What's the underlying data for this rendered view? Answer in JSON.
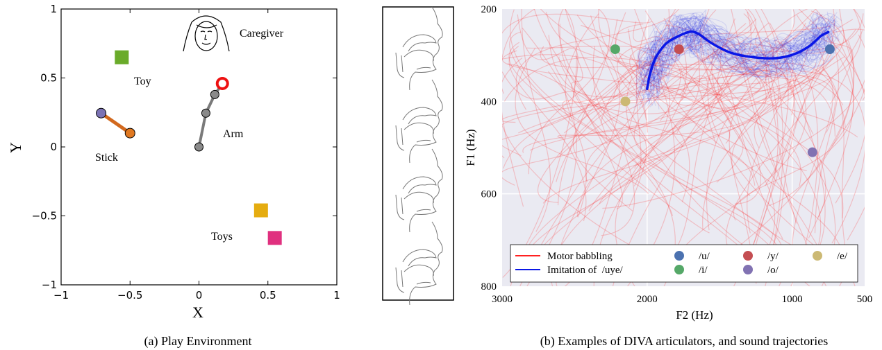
{
  "chart_data": [
    {
      "type": "scatter",
      "caption": "(a) Play Environment",
      "xlabel": "X",
      "ylabel": "Y",
      "xlim": [
        -1,
        1
      ],
      "ylim": [
        -1,
        1
      ],
      "xticks": [
        "−1",
        "−0.5",
        "0",
        "0.5",
        "1"
      ],
      "yticks": [
        "1",
        "0.5",
        "0",
        "−0.5",
        "−1"
      ],
      "grid": false,
      "objects": {
        "toy": {
          "label": "Toy",
          "x": -0.56,
          "y": 0.65,
          "color": "#6aab2a"
        },
        "toys": {
          "label": "Toys",
          "items": [
            {
              "x": 0.45,
              "y": -0.46,
              "color": "#e5ac10"
            },
            {
              "x": 0.55,
              "y": -0.66,
              "color": "#e0307f"
            }
          ]
        },
        "stick": {
          "label": "Stick",
          "x1": -0.71,
          "y1": 0.245,
          "x2": -0.5,
          "y2": 0.1,
          "color": "#d2691e",
          "handle_color": "#7b72b4",
          "end_color": "#e07820"
        },
        "arm": {
          "label": "Arm",
          "joints": [
            [
              0,
              0
            ],
            [
              0.05,
              0.245
            ],
            [
              0.115,
              0.38
            ],
            [
              0.17,
              0.46
            ]
          ],
          "hand_color": "#ee1111"
        },
        "caregiver": {
          "label": "Caregiver"
        }
      }
    },
    {
      "type": "line",
      "caption": "(b) Examples of DIVA articulators, and sound trajectories",
      "xlabel": "F2 (Hz)",
      "ylabel": "F1 (Hz)",
      "xlim": [
        3000,
        500
      ],
      "ylim": [
        800,
        200
      ],
      "xticks": [
        "3000",
        "2000",
        "1000",
        "500"
      ],
      "yticks": [
        "200",
        "400",
        "600",
        "800"
      ],
      "grid": true,
      "background": "#eaeaf2",
      "series": [
        {
          "name": "Motor babbling",
          "color": "#ff2020"
        },
        {
          "name": "Imitation of  /uye/",
          "color": "#0a17e6",
          "x": [
            2000,
            1980,
            1940,
            1870,
            1780,
            1700,
            1640,
            1550,
            1420,
            1250,
            1100,
            980,
            880,
            800,
            750
          ],
          "y": [
            373,
            340,
            305,
            275,
            258,
            249,
            255,
            275,
            295,
            305,
            306,
            297,
            280,
            258,
            250
          ]
        }
      ],
      "vowels": [
        {
          "label": "/u/",
          "x": 740,
          "y": 287,
          "color": "#4c72b0"
        },
        {
          "label": "/y/",
          "x": 1780,
          "y": 287,
          "color": "#c44e52"
        },
        {
          "label": "/e/",
          "x": 2150,
          "y": 400,
          "color": "#ccb974"
        },
        {
          "label": "/i/",
          "x": 2220,
          "y": 287,
          "color": "#55a868"
        },
        {
          "label": "/o/",
          "x": 860,
          "y": 510,
          "color": "#8172b2"
        }
      ]
    }
  ]
}
